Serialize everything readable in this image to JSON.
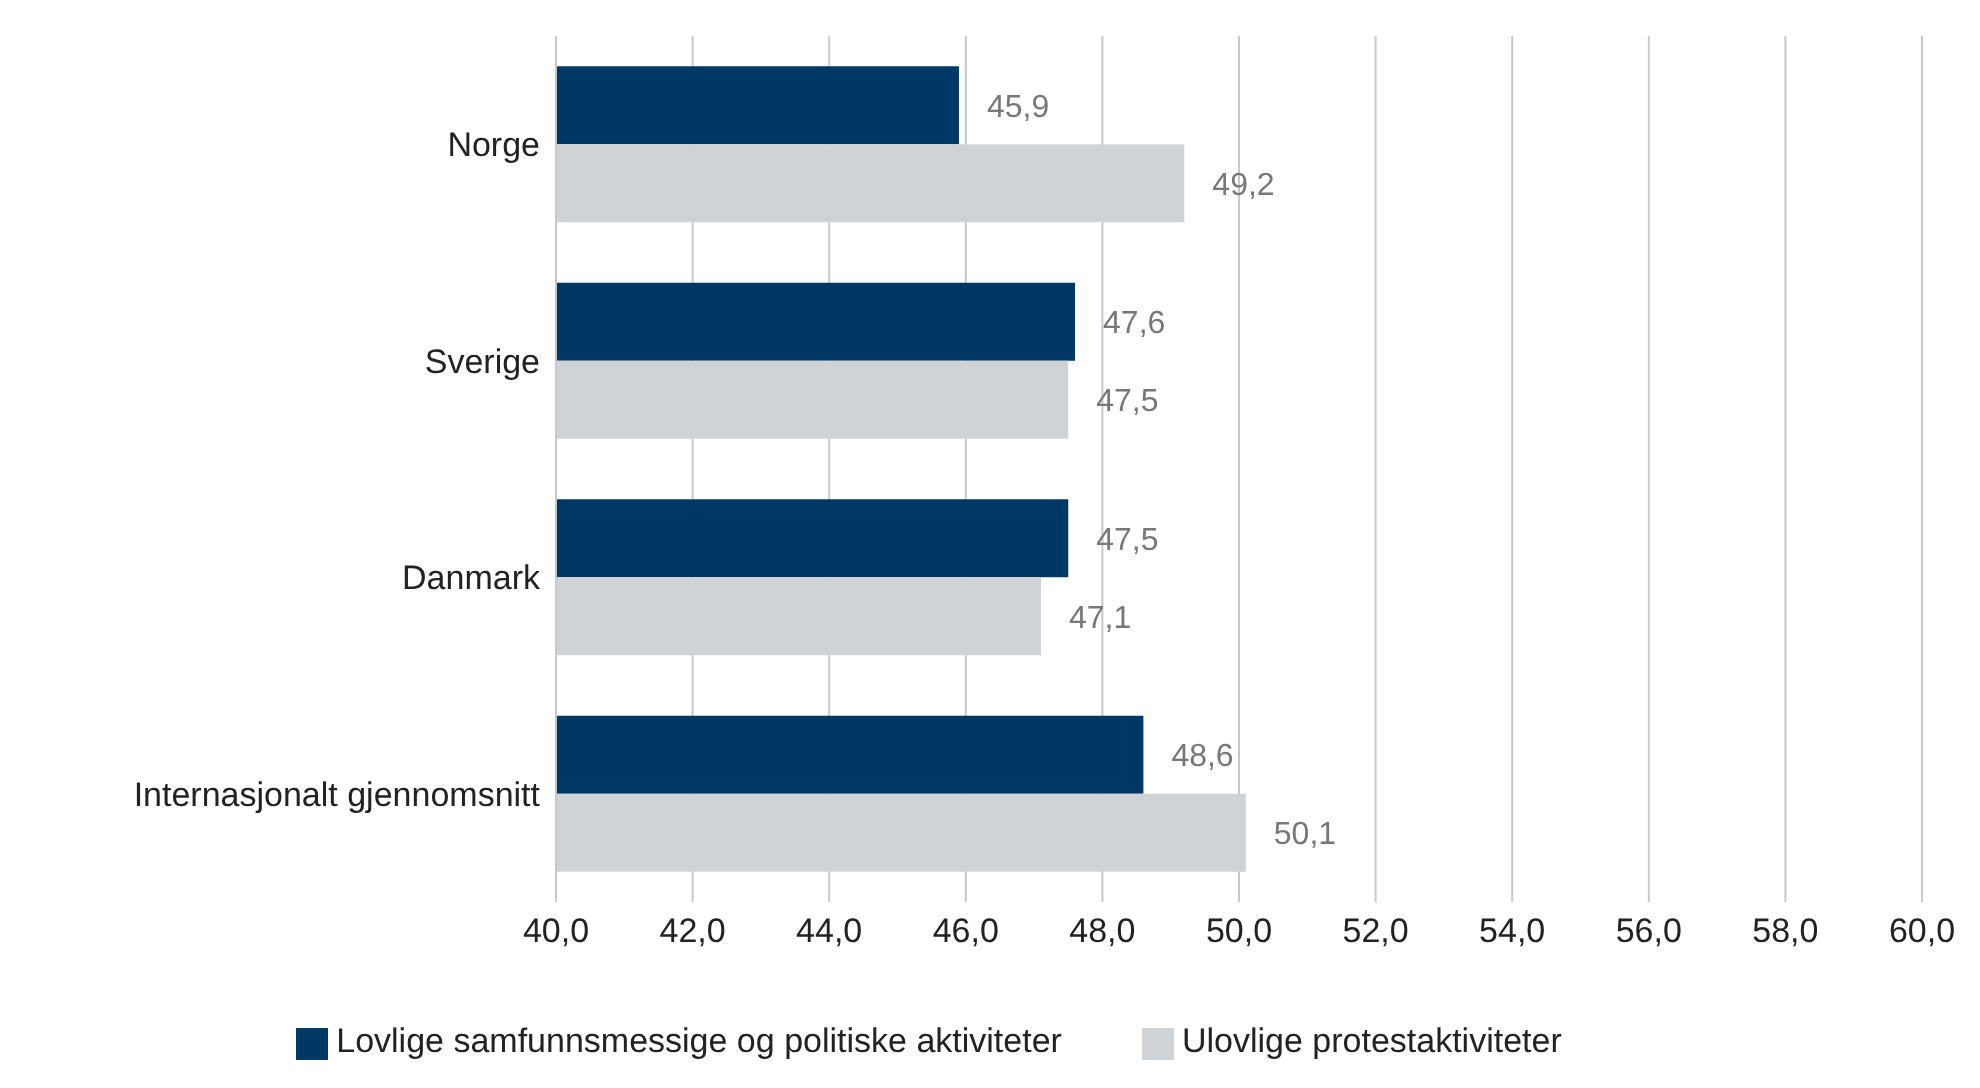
{
  "chart_data": {
    "type": "bar",
    "orientation": "horizontal",
    "categories": [
      "Norge",
      "Sverige",
      "Danmark",
      "Internasjonalt gjennomsnitt"
    ],
    "series": [
      {
        "name": "Lovlige samfunnsmessige og politiske aktiviteter",
        "color": "#003865",
        "values": [
          45.9,
          47.6,
          47.5,
          48.6
        ],
        "value_labels": [
          "45,9",
          "47,6",
          "47,5",
          "48,6"
        ]
      },
      {
        "name": "Ulovlige protestaktiviteter",
        "color": "#d0d3d6",
        "values": [
          49.2,
          47.5,
          47.1,
          50.1
        ],
        "value_labels": [
          "49,2",
          "47,5",
          "47,1",
          "50,1"
        ]
      }
    ],
    "xlim": [
      40,
      60
    ],
    "xticks": [
      {
        "value": 40,
        "label": "40,0"
      },
      {
        "value": 42,
        "label": "42,0"
      },
      {
        "value": 44,
        "label": "44,0"
      },
      {
        "value": 46,
        "label": "46,0"
      },
      {
        "value": 48,
        "label": "48,0"
      },
      {
        "value": 50,
        "label": "50,0"
      },
      {
        "value": 52,
        "label": "52,0"
      },
      {
        "value": 54,
        "label": "54,0"
      },
      {
        "value": 56,
        "label": "56,0"
      },
      {
        "value": 58,
        "label": "58,0"
      },
      {
        "value": 60,
        "label": "60,0"
      }
    ],
    "grid": "x",
    "legend": "bottom"
  }
}
